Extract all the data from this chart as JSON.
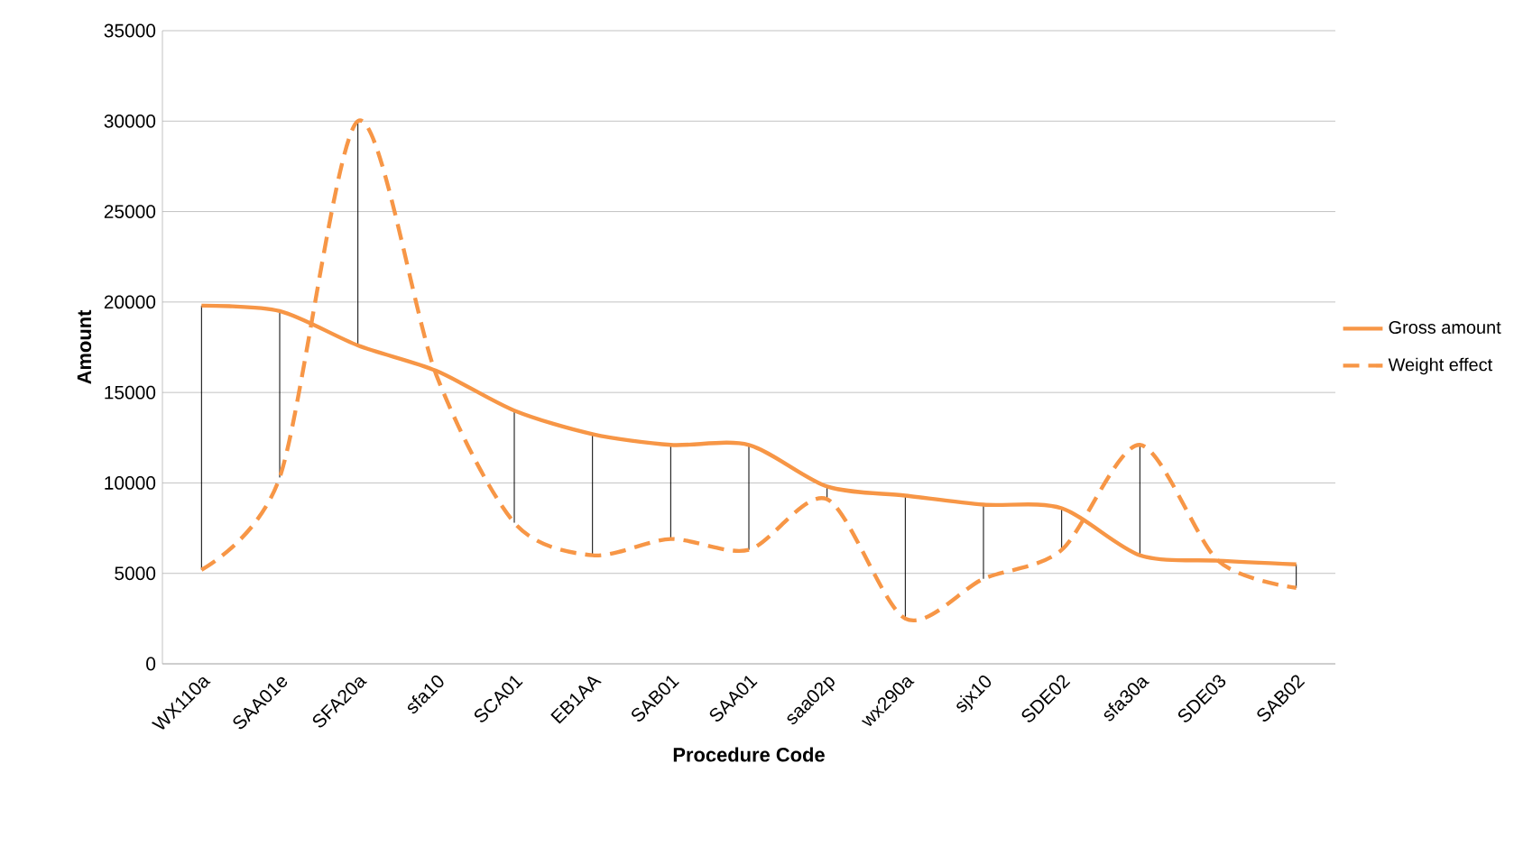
{
  "chart_data": {
    "type": "line",
    "xlabel": "Procedure Code",
    "ylabel": "Amount",
    "categories": [
      "WX110a",
      "SAA01e",
      "SFA20a",
      "sfa10",
      "SCA01",
      "EB1AA",
      "SAB01",
      "SAA01",
      "saa02p",
      "wx290a",
      "sjx10",
      "SDE02",
      "sfa30a",
      "SDE03",
      "SAB02"
    ],
    "series": [
      {
        "name": "Gross amount",
        "color": "#f79646",
        "line_style": "solid",
        "values": [
          19800,
          19500,
          17600,
          16200,
          14000,
          12700,
          12100,
          12100,
          9800,
          9300,
          8800,
          8600,
          6000,
          5700,
          5500
        ],
        "errors": [
          [
            5200,
            19800
          ],
          [
            10300,
            19500
          ],
          [
            17600,
            30000
          ],
          null,
          [
            7800,
            14000
          ],
          [
            6000,
            12700
          ],
          [
            6900,
            12100
          ],
          [
            6300,
            12100
          ],
          [
            9100,
            9800
          ],
          [
            2500,
            9300
          ],
          [
            4700,
            8800
          ],
          [
            6300,
            8600
          ],
          [
            6000,
            12100
          ],
          null,
          [
            4200,
            5500
          ]
        ]
      },
      {
        "name": "Weight effect",
        "color": "#f79646",
        "line_style": "dashed",
        "values": [
          5200,
          10300,
          30000,
          16000,
          7800,
          6000,
          6900,
          6300,
          9100,
          2500,
          4700,
          6300,
          12100,
          5700,
          4200
        ]
      }
    ],
    "ylim": [
      0,
      35000
    ],
    "yticks": [
      0,
      5000,
      10000,
      15000,
      20000,
      25000,
      30000,
      35000
    ],
    "grid": "y",
    "legend": "right",
    "marker": "none"
  }
}
